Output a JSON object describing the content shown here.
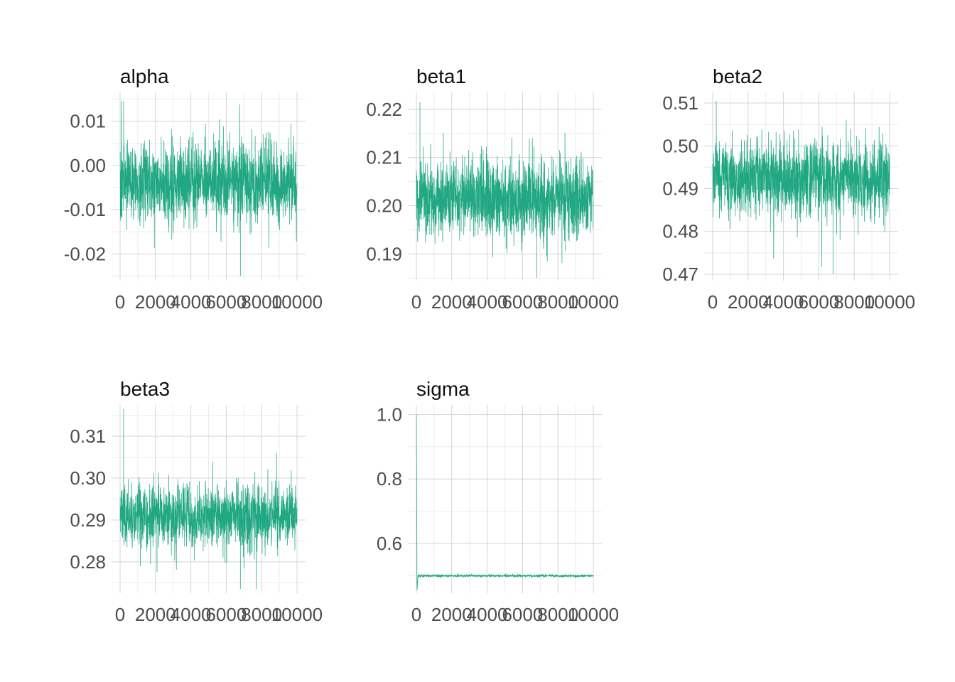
{
  "chart_data": [
    {
      "type": "line",
      "title": "alpha",
      "color": "#21A883",
      "xlim": [
        0,
        10000
      ],
      "ylim": [
        -0.026,
        0.0165
      ],
      "x_ticks": [
        0,
        2000,
        4000,
        6000,
        8000,
        10000
      ],
      "x_tick_labels": [
        "0",
        "2000",
        "4000",
        "6000",
        "8000",
        "10000"
      ],
      "y_ticks": [
        -0.02,
        -0.01,
        0.0,
        0.01
      ],
      "y_tick_labels": [
        "-0.02",
        "-0.01",
        "0.00",
        "0.01"
      ],
      "series": [
        {
          "iterations": 10000,
          "mean": -0.004,
          "band_low": -0.0125,
          "band_high": 0.005,
          "min": -0.025,
          "max": 0.0145
        }
      ],
      "grid": true,
      "legend": "none"
    },
    {
      "type": "line",
      "title": "beta1",
      "color": "#21A883",
      "xlim": [
        0,
        10000
      ],
      "ylim": [
        0.1845,
        0.2235
      ],
      "x_ticks": [
        0,
        2000,
        4000,
        6000,
        8000,
        10000
      ],
      "x_tick_labels": [
        "0",
        "2000",
        "4000",
        "6000",
        "8000",
        "10000"
      ],
      "y_ticks": [
        0.19,
        0.2,
        0.21,
        0.22
      ],
      "y_tick_labels": [
        "0.19",
        "0.20",
        "0.21",
        "0.22"
      ],
      "series": [
        {
          "iterations": 10000,
          "mean": 0.2015,
          "band_low": 0.1935,
          "band_high": 0.2095,
          "min": 0.185,
          "max": 0.2215
        }
      ],
      "grid": true,
      "legend": "none"
    },
    {
      "type": "line",
      "title": "beta2",
      "color": "#21A883",
      "xlim": [
        0,
        10000
      ],
      "ylim": [
        0.4685,
        0.5125
      ],
      "x_ticks": [
        0,
        2000,
        4000,
        6000,
        8000,
        10000
      ],
      "x_tick_labels": [
        "0",
        "2000",
        "4000",
        "6000",
        "8000",
        "10000"
      ],
      "y_ticks": [
        0.47,
        0.48,
        0.49,
        0.5,
        0.51
      ],
      "y_tick_labels": [
        "0.47",
        "0.48",
        "0.49",
        "0.50",
        "0.51"
      ],
      "series": [
        {
          "iterations": 10000,
          "mean": 0.4925,
          "band_low": 0.484,
          "band_high": 0.501,
          "min": 0.47,
          "max": 0.5105
        }
      ],
      "grid": true,
      "legend": "none"
    },
    {
      "type": "line",
      "title": "beta3",
      "color": "#21A883",
      "xlim": [
        0,
        10000
      ],
      "ylim": [
        0.2725,
        0.3175
      ],
      "x_ticks": [
        0,
        2000,
        4000,
        6000,
        8000,
        10000
      ],
      "x_tick_labels": [
        "0",
        "2000",
        "4000",
        "6000",
        "8000",
        "10000"
      ],
      "y_ticks": [
        0.28,
        0.29,
        0.3,
        0.31
      ],
      "y_tick_labels": [
        "0.28",
        "0.29",
        "0.30",
        "0.31"
      ],
      "series": [
        {
          "iterations": 10000,
          "mean": 0.291,
          "band_low": 0.2835,
          "band_high": 0.2985,
          "min": 0.2735,
          "max": 0.3165
        }
      ],
      "grid": true,
      "legend": "none"
    },
    {
      "type": "line",
      "title": "sigma",
      "color": "#21A883",
      "xlim": [
        0,
        10000
      ],
      "ylim": [
        0.445,
        1.03
      ],
      "x_ticks": [
        0,
        2000,
        4000,
        6000,
        8000,
        10000
      ],
      "x_tick_labels": [
        "0",
        "2000",
        "4000",
        "6000",
        "8000",
        "10000"
      ],
      "y_ticks": [
        0.6,
        0.8,
        1.0
      ],
      "y_tick_labels": [
        "0.6",
        "0.8",
        "1.0"
      ],
      "series": [
        {
          "iterations": 10000,
          "start_value": 1.0,
          "burn_in_min": 0.455,
          "mean": 0.499,
          "band_low": 0.495,
          "band_high": 0.503,
          "min": 0.493,
          "max": 0.508
        }
      ],
      "grid": true,
      "legend": "none"
    }
  ]
}
